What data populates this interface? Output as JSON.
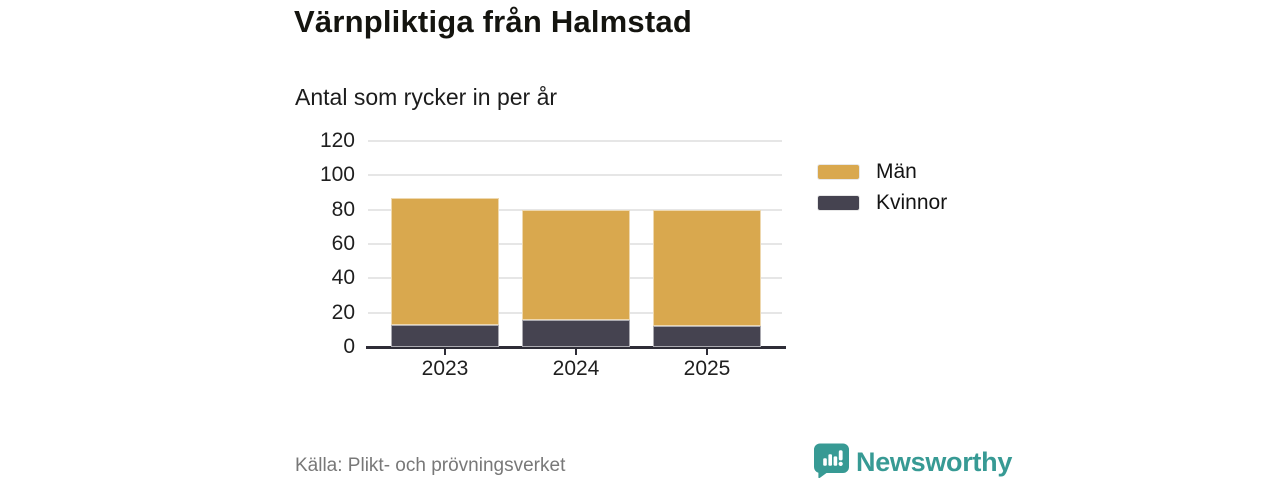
{
  "header": {
    "title": "Värnpliktiga från Halmstad",
    "subtitle": "Antal som rycker in per år"
  },
  "footer": {
    "source": "Källa: Plikt- och prövningsverket",
    "brand": "Newsworthy"
  },
  "colors": {
    "men": "#D9A84E",
    "women": "#454350",
    "axis": "#2E2D37",
    "gridline": "#E6E6E6",
    "brand_teal": "#379A94",
    "source_gray": "#787878",
    "background": "#FFFFFF"
  },
  "chart_data": {
    "type": "bar",
    "stacked": true,
    "title": "Värnpliktiga från Halmstad",
    "subtitle": "Antal som rycker in per år",
    "categories": [
      "2023",
      "2024",
      "2025"
    ],
    "series": [
      {
        "name": "Män",
        "color": "#D9A84E",
        "values": [
          74,
          64,
          68
        ]
      },
      {
        "name": "Kvinnor",
        "color": "#454350",
        "values": [
          13,
          16,
          12
        ]
      }
    ],
    "stack_bottom_to_top": [
      "Kvinnor",
      "Män"
    ],
    "totals": [
      87,
      80,
      80
    ],
    "ylim": [
      0,
      120
    ],
    "yticks": [
      0,
      20,
      40,
      60,
      80,
      100,
      120
    ],
    "xlabel": "",
    "ylabel": "",
    "grid": true,
    "legend_position": "right",
    "legend": [
      "Män",
      "Kvinnor"
    ]
  }
}
